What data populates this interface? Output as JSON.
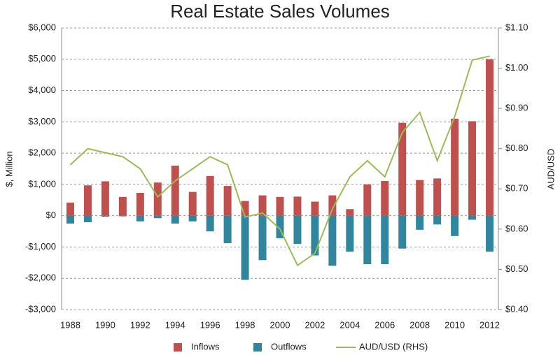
{
  "chart_data": {
    "type": "bar",
    "title": "Real Estate Sales Volumes",
    "y_label": "$, Million",
    "y2_label": "AUD/USD",
    "categories": [
      "1988",
      null,
      "1990",
      null,
      "1992",
      null,
      "1994",
      null,
      "1996",
      null,
      "1998",
      null,
      "2000",
      null,
      "2002",
      null,
      "2004",
      null,
      "2006",
      null,
      "2008",
      null,
      "2010",
      null,
      "2012"
    ],
    "series": [
      {
        "name": "Inflows",
        "type": "bar",
        "color": "#c0504d",
        "values": [
          420,
          970,
          1100,
          600,
          730,
          1060,
          1600,
          760,
          1270,
          950,
          470,
          650,
          600,
          610,
          450,
          650,
          210,
          1000,
          1110,
          2970,
          1140,
          1190,
          3100,
          3020,
          5000
        ]
      },
      {
        "name": "Outflows",
        "type": "bar",
        "color": "#31859c",
        "values": [
          -250,
          -210,
          -30,
          -20,
          -180,
          -80,
          -250,
          -180,
          -500,
          -880,
          -2050,
          -1420,
          -720,
          -900,
          -1270,
          -1600,
          -1150,
          -1550,
          -1550,
          -1050,
          -450,
          -280,
          -650,
          -130,
          -1150
        ]
      },
      {
        "name": "AUD/USD (RHS)",
        "type": "line",
        "axis": "y2",
        "color": "#9bbb59",
        "values": [
          0.76,
          0.8,
          0.79,
          0.78,
          0.75,
          0.68,
          0.72,
          0.75,
          0.78,
          0.76,
          0.63,
          0.64,
          0.6,
          0.51,
          0.54,
          0.65,
          0.73,
          0.77,
          0.73,
          0.84,
          0.89,
          0.77,
          0.88,
          1.02,
          1.03
        ]
      }
    ],
    "ylim": [
      -3000,
      6000
    ],
    "yticks": [
      {
        "value": -3000,
        "label": "-$3,000"
      },
      {
        "value": -2000,
        "label": "-$2,000"
      },
      {
        "value": -1000,
        "label": "-$1,000"
      },
      {
        "value": 0,
        "label": "$0"
      },
      {
        "value": 1000,
        "label": "$1,000"
      },
      {
        "value": 2000,
        "label": "$2,000"
      },
      {
        "value": 3000,
        "label": "$3,000"
      },
      {
        "value": 4000,
        "label": "$4,000"
      },
      {
        "value": 5000,
        "label": "$5,000"
      },
      {
        "value": 6000,
        "label": "$6,000"
      }
    ],
    "y2lim": [
      0.4,
      1.1
    ],
    "y2ticks": [
      {
        "value": 0.4,
        "label": "$0.40"
      },
      {
        "value": 0.5,
        "label": "$0.50"
      },
      {
        "value": 0.6,
        "label": "$0.60"
      },
      {
        "value": 0.7,
        "label": "$0.70"
      },
      {
        "value": 0.8,
        "label": "$0.80"
      },
      {
        "value": 0.9,
        "label": "$0.90"
      },
      {
        "value": 1.0,
        "label": "$1.00"
      },
      {
        "value": 1.1,
        "label": "$1.10"
      }
    ],
    "grid": true,
    "legend": "bottom"
  }
}
